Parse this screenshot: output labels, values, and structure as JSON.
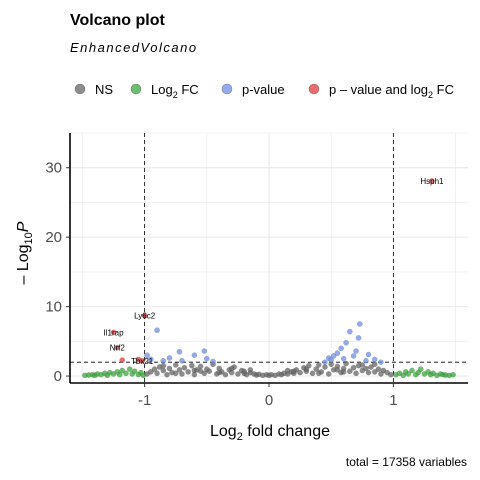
{
  "chart_data": {
    "type": "scatter",
    "title": "Volcano plot",
    "subtitle": "EnhancedVolcano",
    "xlabel_main": "Log",
    "xlabel_sub": "2",
    "xlabel_rest": " fold change",
    "ylabel_pre": "– Log",
    "ylabel_sub": "10",
    "ylabel_italic": "P",
    "caption": "total = 17358 variables",
    "xlim": [
      -1.6,
      1.6
    ],
    "ylim": [
      -1,
      35
    ],
    "xticks": [
      -1,
      0,
      1
    ],
    "xtick_labels": [
      "-1",
      "0",
      "1"
    ],
    "yticks": [
      0,
      10,
      20,
      30
    ],
    "ytick_labels": [
      "0",
      "10",
      "20",
      "30"
    ],
    "grid": true,
    "legend_position": "top",
    "cutoffs": {
      "fc": 1.0,
      "p_log10": 2.0
    },
    "colors": {
      "NS": "#666666",
      "FC": "#39a839",
      "P": "#6e8fe6",
      "FC_P": "#e23b3b",
      "grid": "#ebebeb",
      "cutline": "#000000"
    },
    "legend": [
      {
        "key": "NS",
        "label": "NS",
        "sub": "",
        "rest": ""
      },
      {
        "key": "FC",
        "label": "Log",
        "sub": "2",
        "rest": " FC"
      },
      {
        "key": "P",
        "label": "p-value",
        "sub": "",
        "rest": ""
      },
      {
        "key": "FC_P",
        "label": "p – value and log",
        "sub": "2",
        "rest": " FC"
      }
    ],
    "series": [
      {
        "name": "NS",
        "points": [
          [
            -0.98,
            0.3
          ],
          [
            -0.95,
            0.6
          ],
          [
            -0.92,
            1.0
          ],
          [
            -0.9,
            0.4
          ],
          [
            -0.88,
            1.3
          ],
          [
            -0.85,
            0.8
          ],
          [
            -0.82,
            0.2
          ],
          [
            -0.8,
            1.1
          ],
          [
            -0.78,
            0.5
          ],
          [
            -0.75,
            1.6
          ],
          [
            -0.72,
            0.9
          ],
          [
            -0.7,
            0.3
          ],
          [
            -0.68,
            1.2
          ],
          [
            -0.65,
            0.6
          ],
          [
            -0.62,
            1.5
          ],
          [
            -0.6,
            0.2
          ],
          [
            -0.58,
            0.9
          ],
          [
            -0.55,
            1.4
          ],
          [
            -0.52,
            0.4
          ],
          [
            -0.5,
            1.0
          ],
          [
            -0.48,
            0.7
          ],
          [
            -0.45,
            1.7
          ],
          [
            -0.42,
            0.3
          ],
          [
            -0.4,
            1.1
          ],
          [
            -0.38,
            0.6
          ],
          [
            -0.35,
            0.2
          ],
          [
            -0.32,
            0.9
          ],
          [
            -0.3,
            0.5
          ],
          [
            -0.28,
            1.3
          ],
          [
            -0.25,
            0.3
          ],
          [
            -0.22,
            0.8
          ],
          [
            -0.2,
            0.4
          ],
          [
            -0.18,
            0.2
          ],
          [
            -0.15,
            0.5
          ],
          [
            -0.12,
            0.3
          ],
          [
            -0.1,
            0.15
          ],
          [
            -0.08,
            0.25
          ],
          [
            -0.05,
            0.1
          ],
          [
            -0.02,
            0.2
          ],
          [
            0.0,
            0.1
          ],
          [
            0.02,
            0.2
          ],
          [
            0.05,
            0.1
          ],
          [
            0.08,
            0.3
          ],
          [
            0.1,
            0.2
          ],
          [
            0.12,
            0.4
          ],
          [
            0.15,
            0.3
          ],
          [
            0.18,
            0.6
          ],
          [
            0.2,
            0.4
          ],
          [
            0.22,
            0.9
          ],
          [
            0.25,
            0.5
          ],
          [
            0.28,
            1.2
          ],
          [
            0.3,
            0.7
          ],
          [
            0.32,
            1.5
          ],
          [
            0.35,
            0.4
          ],
          [
            0.38,
            1.0
          ],
          [
            0.4,
            1.6
          ],
          [
            0.42,
            0.6
          ],
          [
            0.45,
            1.3
          ],
          [
            0.48,
            0.3
          ],
          [
            0.5,
            1.7
          ],
          [
            0.52,
            0.9
          ],
          [
            0.55,
            1.4
          ],
          [
            0.58,
            0.5
          ],
          [
            0.6,
            1.1
          ],
          [
            0.62,
            1.8
          ],
          [
            0.65,
            0.7
          ],
          [
            0.68,
            1.2
          ],
          [
            0.7,
            0.4
          ],
          [
            0.72,
            1.5
          ],
          [
            0.75,
            0.8
          ],
          [
            0.78,
            1.1
          ],
          [
            0.8,
            0.5
          ],
          [
            0.82,
            1.3
          ],
          [
            0.85,
            0.6
          ],
          [
            0.88,
            1.0
          ],
          [
            0.9,
            0.3
          ],
          [
            0.92,
            0.8
          ],
          [
            0.95,
            0.5
          ],
          [
            0.98,
            0.2
          ],
          [
            -0.6,
            0.8
          ],
          [
            -0.4,
            0.5
          ],
          [
            -0.2,
            0.7
          ],
          [
            0.2,
            0.7
          ],
          [
            0.4,
            0.4
          ],
          [
            0.6,
            0.6
          ],
          [
            0.3,
            1.0
          ],
          [
            -0.3,
            1.1
          ],
          [
            0.15,
            0.8
          ],
          [
            -0.15,
            0.9
          ],
          [
            0.55,
            0.9
          ],
          [
            -0.55,
            0.7
          ],
          [
            0.75,
            1.6
          ],
          [
            -0.75,
            0.4
          ],
          [
            0.85,
            1.7
          ],
          [
            -0.85,
            1.5
          ]
        ]
      },
      {
        "name": "FC",
        "points": [
          [
            -1.48,
            0.1
          ],
          [
            -1.45,
            0.15
          ],
          [
            -1.42,
            0.2
          ],
          [
            -1.4,
            0.1
          ],
          [
            -1.38,
            0.3
          ],
          [
            -1.35,
            0.2
          ],
          [
            -1.32,
            0.4
          ],
          [
            -1.3,
            0.1
          ],
          [
            -1.28,
            0.5
          ],
          [
            -1.25,
            0.3
          ],
          [
            -1.22,
            0.6
          ],
          [
            -1.2,
            0.2
          ],
          [
            -1.18,
            0.8
          ],
          [
            -1.15,
            0.4
          ],
          [
            -1.12,
            1.0
          ],
          [
            -1.1,
            0.3
          ],
          [
            -1.08,
            0.7
          ],
          [
            -1.05,
            0.2
          ],
          [
            -1.03,
            0.5
          ],
          [
            -1.01,
            0.1
          ],
          [
            1.02,
            0.2
          ],
          [
            1.05,
            0.4
          ],
          [
            1.08,
            0.1
          ],
          [
            1.1,
            0.6
          ],
          [
            1.12,
            0.3
          ],
          [
            1.15,
            0.8
          ],
          [
            1.18,
            0.2
          ],
          [
            1.2,
            0.5
          ],
          [
            1.22,
            1.0
          ],
          [
            1.25,
            0.3
          ],
          [
            1.28,
            0.6
          ],
          [
            1.3,
            0.2
          ],
          [
            1.32,
            0.4
          ],
          [
            1.35,
            0.1
          ],
          [
            1.38,
            0.3
          ],
          [
            1.4,
            0.2
          ],
          [
            1.42,
            0.15
          ],
          [
            1.45,
            0.1
          ],
          [
            1.48,
            0.2
          ]
        ]
      },
      {
        "name": "P",
        "points": [
          [
            -0.98,
            3.0
          ],
          [
            -0.95,
            2.4
          ],
          [
            -0.9,
            6.6
          ],
          [
            -0.85,
            2.2
          ],
          [
            -0.8,
            2.6
          ],
          [
            -0.72,
            3.5
          ],
          [
            -0.7,
            2.2
          ],
          [
            -0.6,
            3.0
          ],
          [
            -0.5,
            2.5
          ],
          [
            -0.52,
            3.6
          ],
          [
            -0.45,
            2.1
          ],
          [
            0.45,
            2.0
          ],
          [
            0.48,
            2.6
          ],
          [
            0.5,
            2.3
          ],
          [
            0.52,
            2.9
          ],
          [
            0.55,
            3.3
          ],
          [
            0.58,
            4.0
          ],
          [
            0.6,
            2.5
          ],
          [
            0.62,
            4.8
          ],
          [
            0.65,
            6.4
          ],
          [
            0.68,
            2.9
          ],
          [
            0.7,
            3.6
          ],
          [
            0.72,
            5.5
          ],
          [
            0.73,
            7.5
          ],
          [
            0.78,
            2.2
          ],
          [
            0.8,
            3.1
          ],
          [
            0.85,
            2.4
          ],
          [
            0.9,
            2.0
          ]
        ]
      },
      {
        "name": "FC_P",
        "points": [
          [
            -1.25,
            6.3,
            "Il1rap"
          ],
          [
            -1.22,
            4.1,
            "Nrf2"
          ],
          [
            -1.18,
            2.3,
            ""
          ],
          [
            -1.05,
            2.4,
            ""
          ],
          [
            -1.02,
            2.2,
            "Tbx21"
          ],
          [
            -1.0,
            8.7,
            "Ly6c2"
          ],
          [
            1.31,
            28.1,
            "Hsph1"
          ]
        ]
      }
    ]
  }
}
